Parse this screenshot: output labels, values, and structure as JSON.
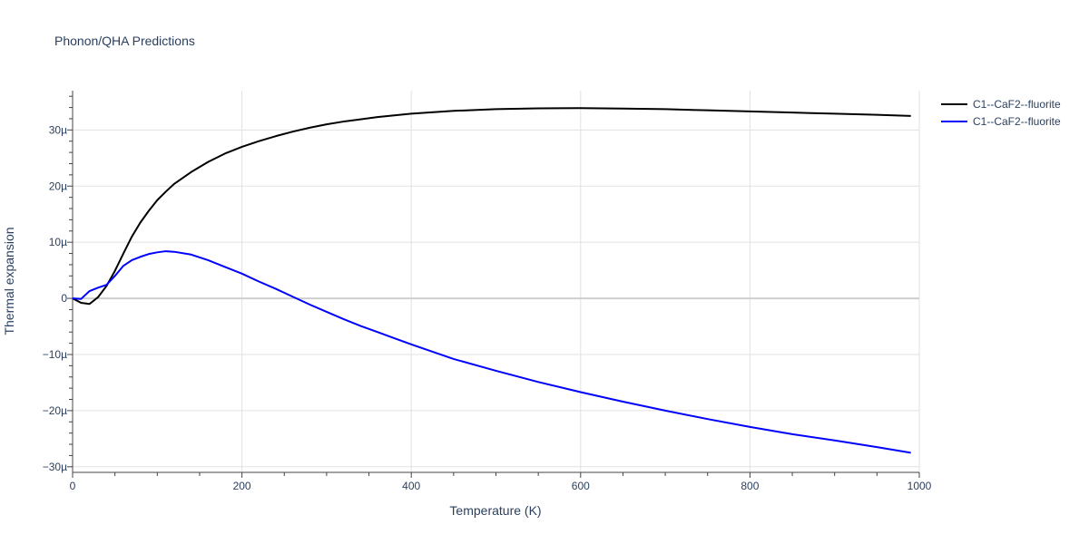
{
  "chart_data": {
    "type": "line",
    "title": "Phonon/QHA Predictions",
    "xlabel": "Temperature (K)",
    "ylabel": "Thermal expansion",
    "xlim": [
      0,
      1000
    ],
    "ylim": [
      -31,
      37
    ],
    "y_unit_suffix": "µ",
    "x_ticks": [
      0,
      200,
      400,
      600,
      800,
      1000
    ],
    "y_ticks": [
      -30,
      -20,
      -10,
      0,
      10,
      20,
      30
    ],
    "grid": true,
    "legend_position": "top-right, outside plot area",
    "series": [
      {
        "name": "C1--CaF2--fluorite",
        "color": "#000000",
        "x": [
          0,
          10,
          20,
          30,
          40,
          50,
          60,
          70,
          80,
          90,
          100,
          110,
          120,
          140,
          160,
          180,
          200,
          220,
          240,
          260,
          280,
          300,
          320,
          340,
          360,
          380,
          400,
          450,
          500,
          550,
          600,
          650,
          700,
          750,
          800,
          850,
          900,
          950,
          990
        ],
        "y": [
          0,
          -0.8,
          -1.0,
          0.2,
          2.2,
          4.9,
          8.0,
          11.0,
          13.5,
          15.6,
          17.5,
          19.0,
          20.4,
          22.5,
          24.3,
          25.8,
          27.0,
          28.0,
          28.9,
          29.7,
          30.4,
          31.0,
          31.5,
          31.9,
          32.3,
          32.6,
          32.9,
          33.4,
          33.7,
          33.85,
          33.9,
          33.8,
          33.7,
          33.5,
          33.3,
          33.1,
          32.9,
          32.7,
          32.5
        ]
      },
      {
        "name": "C1--CaF2--fluorite",
        "color": "#0000ff",
        "x": [
          0,
          10,
          20,
          30,
          40,
          50,
          60,
          70,
          80,
          90,
          100,
          110,
          120,
          140,
          160,
          180,
          200,
          220,
          240,
          260,
          280,
          300,
          320,
          340,
          360,
          380,
          400,
          450,
          500,
          550,
          600,
          650,
          700,
          750,
          800,
          850,
          900,
          950,
          990
        ],
        "y": [
          0,
          -0.1,
          1.3,
          1.9,
          2.4,
          4.0,
          5.8,
          6.8,
          7.4,
          7.9,
          8.2,
          8.4,
          8.3,
          7.8,
          6.8,
          5.6,
          4.4,
          3.0,
          1.7,
          0.3,
          -1.1,
          -2.4,
          -3.7,
          -4.9,
          -6.0,
          -7.1,
          -8.2,
          -10.8,
          -12.9,
          -14.9,
          -16.7,
          -18.4,
          -20.0,
          -21.5,
          -22.9,
          -24.2,
          -25.3,
          -26.5,
          -27.5
        ]
      }
    ]
  }
}
